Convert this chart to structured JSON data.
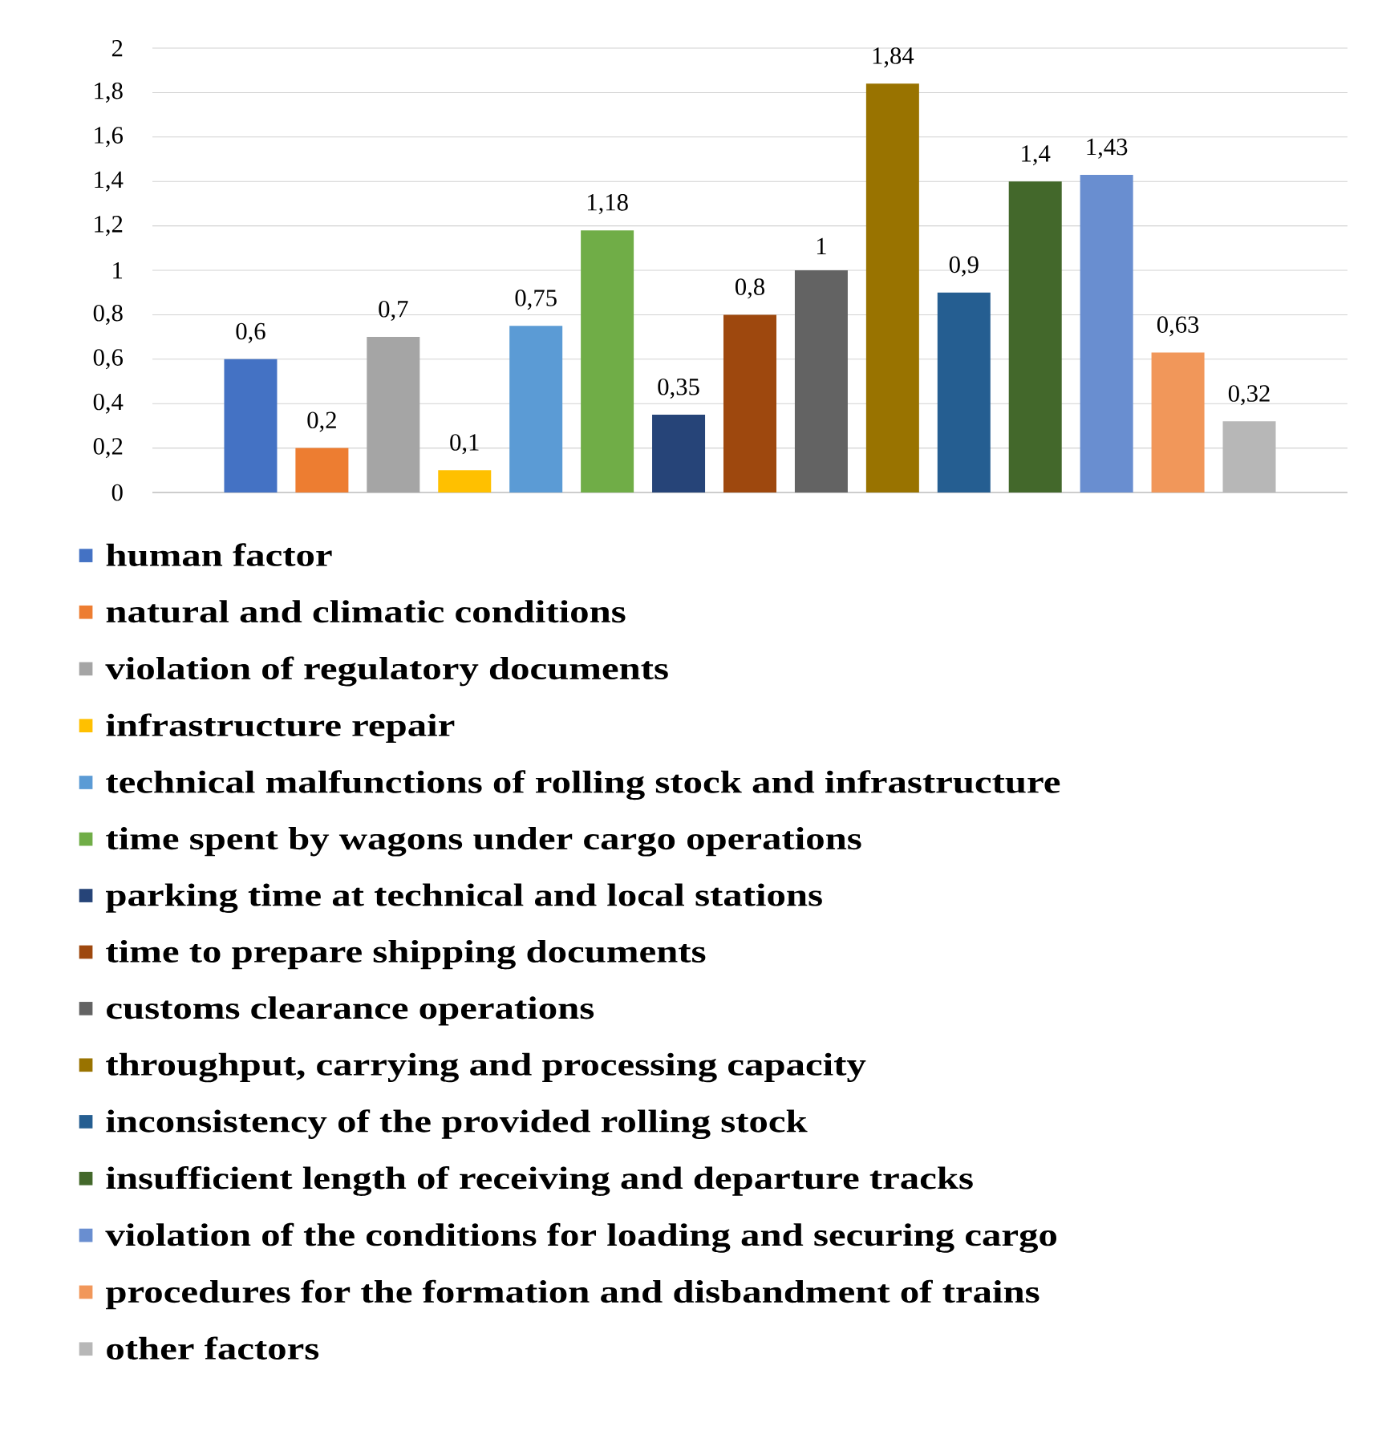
{
  "chart_data": {
    "type": "bar",
    "categories": [
      null
    ],
    "series": [
      {
        "name": "human factor",
        "color": "#4472c4",
        "values": [
          0.6
        ],
        "value_labels": [
          "0,6"
        ]
      },
      {
        "name": "natural and climatic conditions",
        "color": "#ed7d31",
        "values": [
          0.2
        ],
        "value_labels": [
          "0,2"
        ]
      },
      {
        "name": "violation of regulatory documents",
        "color": "#a5a5a5",
        "values": [
          0.7
        ],
        "value_labels": [
          "0,7"
        ]
      },
      {
        "name": "infrastructure repair",
        "color": "#ffc000",
        "values": [
          0.1
        ],
        "value_labels": [
          "0,1"
        ]
      },
      {
        "name": "technical malfunctions of rolling stock and infrastructure",
        "color": "#5b9bd5",
        "values": [
          0.75
        ],
        "value_labels": [
          "0,75"
        ]
      },
      {
        "name": "time spent by wagons under cargo operations",
        "color": "#70ad47",
        "values": [
          1.18
        ],
        "value_labels": [
          "1,18"
        ]
      },
      {
        "name": "parking time at technical and local stations",
        "color": "#264478",
        "values": [
          0.35
        ],
        "value_labels": [
          "0,35"
        ]
      },
      {
        "name": "time to prepare shipping documents",
        "color": "#9e480e",
        "values": [
          0.8
        ],
        "value_labels": [
          "0,8"
        ]
      },
      {
        "name": "customs clearance operations",
        "color": "#636363",
        "values": [
          1
        ],
        "value_labels": [
          "1"
        ]
      },
      {
        "name": "throughput, carrying and processing capacity",
        "color": "#997300",
        "values": [
          1.84
        ],
        "value_labels": [
          "1,84"
        ]
      },
      {
        "name": "inconsistency of the provided rolling stock",
        "color": "#255e91",
        "values": [
          0.9
        ],
        "value_labels": [
          "0,9"
        ]
      },
      {
        "name": "insufficient length of receiving and departure tracks",
        "color": "#43682b",
        "values": [
          1.4
        ],
        "value_labels": [
          "1,4"
        ]
      },
      {
        "name": "violation of the conditions for loading and securing cargo",
        "color": "#698ed0",
        "values": [
          1.43
        ],
        "value_labels": [
          "1,43"
        ]
      },
      {
        "name": "procedures for the formation and disbandment of trains",
        "color": "#f1975a",
        "values": [
          0.63
        ],
        "value_labels": [
          "0,63"
        ]
      },
      {
        "name": "other factors",
        "color": "#b7b7b7",
        "values": [
          0.32
        ],
        "value_labels": [
          "0,32"
        ]
      }
    ],
    "ylim": [
      0,
      2
    ],
    "yticks": [
      0,
      {
        "value": 0.2,
        "label": "0,2"
      },
      {
        "value": 0.4,
        "label": "0,4"
      },
      {
        "value": 0.6,
        "label": "0,6"
      },
      {
        "value": 0.8,
        "label": "0,8"
      },
      1,
      {
        "value": 1.2,
        "label": "1,2"
      },
      {
        "value": 1.4,
        "label": "1,4"
      },
      {
        "value": 1.6,
        "label": "1,6"
      },
      {
        "value": 1.8,
        "label": "1,8"
      },
      2
    ],
    "grid": "y",
    "legend": "bottom"
  }
}
